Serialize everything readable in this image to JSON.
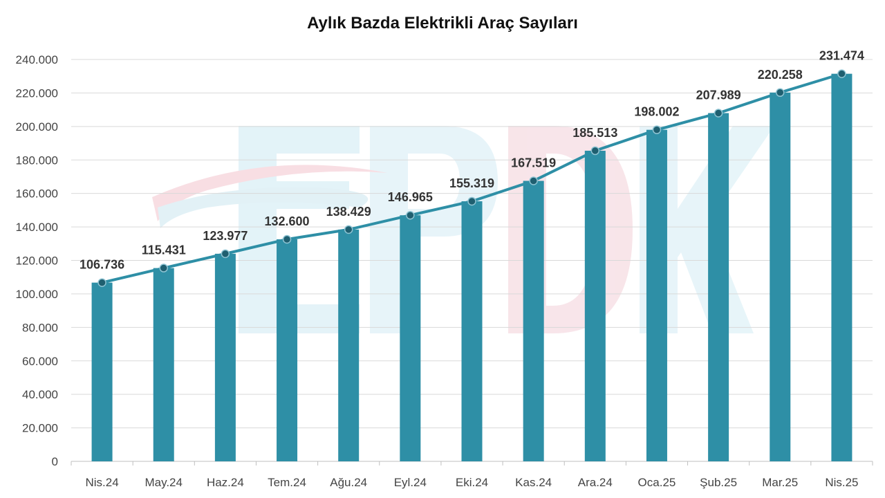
{
  "chart_data": {
    "type": "bar",
    "title": "Aylık Bazda Elektrikli Araç Sayıları",
    "xlabel": "",
    "ylabel": "",
    "categories": [
      "Nis.24",
      "May.24",
      "Haz.24",
      "Tem.24",
      "Ağu.24",
      "Eyl.24",
      "Eki.24",
      "Kas.24",
      "Ara.24",
      "Oca.25",
      "Şub.25",
      "Mar.25",
      "Nis.25"
    ],
    "values": [
      106736,
      115431,
      123977,
      132600,
      138429,
      146965,
      155319,
      167519,
      185513,
      198002,
      207989,
      220258,
      231474
    ],
    "value_labels": [
      "106.736",
      "115.431",
      "123.977",
      "132.600",
      "138.429",
      "146.965",
      "155.319",
      "167.519",
      "185.513",
      "198.002",
      "207.989",
      "220.258",
      "231.474"
    ],
    "overlay": "line with markers through bar tops",
    "ylim": [
      0,
      240000
    ],
    "y_ticks": [
      0,
      20000,
      40000,
      60000,
      80000,
      100000,
      120000,
      140000,
      160000,
      180000,
      200000,
      220000,
      240000
    ],
    "y_tick_labels": [
      "0",
      "20.000",
      "40.000",
      "60.000",
      "80.000",
      "100.000",
      "120.000",
      "140.000",
      "160.000",
      "180.000",
      "200.000",
      "220.000",
      "240.000"
    ],
    "grid": true,
    "legend": "none",
    "colors": {
      "bar": "#2E8FA6",
      "line": "#2E8FA6",
      "marker_fill": "#1F5F70",
      "grid": "#D9D9D9",
      "watermark": "#DDF0F6"
    }
  },
  "watermark_text": "EPDK"
}
